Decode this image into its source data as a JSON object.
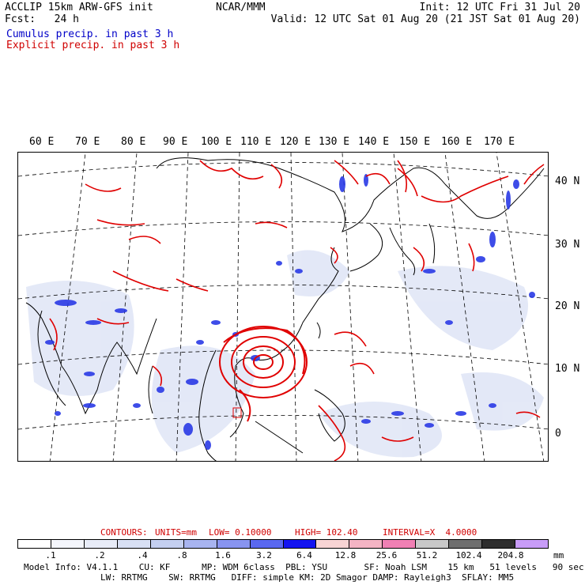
{
  "header": {
    "title": "ACCLIP 15km ARW-GFS init",
    "forecast": "Fcst:   24 h",
    "center": "NCAR/MMM",
    "init": "Init: 12 UTC Fri 31 Jul 20",
    "valid": "Valid: 12 UTC Sat 01 Aug 20 (21 JST Sat 01 Aug 20)",
    "legend_cumulus": "Cumulus precip. in past 3 h",
    "legend_explicit": "Explicit precip. in past 3 h"
  },
  "map": {
    "lon_labels": [
      "60 E",
      "70 E",
      "80 E",
      "90 E",
      "100 E",
      "110 E",
      "120 E",
      "130 E",
      "140 E",
      "150 E",
      "160 E",
      "170 E"
    ],
    "lat_labels": [
      "40 N",
      "30 N",
      "20 N",
      "10 N",
      "0"
    ],
    "colors": {
      "cumulus": "#2030e0",
      "explicit": "#e00000",
      "coast": "#000000",
      "grid": "#000000"
    }
  },
  "contours": {
    "label": "CONTOURS:",
    "units": "UNITS=mm",
    "low": "LOW= 0.10000",
    "high": "HIGH= 102.40",
    "interval": "INTERVAL=X  4.0000"
  },
  "colorbar": {
    "colors": [
      "#ffffff",
      "#f4f6fc",
      "#e8ecf8",
      "#d8e0f4",
      "#c4cff0",
      "#a8b4f0",
      "#8894f0",
      "#5a68f0",
      "#1414f0",
      "#f8d4d4",
      "#f4b4c4",
      "#f080b4",
      "#c8c8c8",
      "#6e6e6e",
      "#2e2e2e",
      "#c89cf8"
    ],
    "ticks": [
      ".1",
      ".2",
      ".4",
      ".8",
      "1.6",
      "3.2",
      "6.4",
      "12.8",
      "25.6",
      "51.2",
      "102.4",
      "204.8"
    ],
    "unit": "mm"
  },
  "footer": {
    "line1": "Model Info: V4.1.1    CU: KF      MP: WDM 6class  PBL: YSU       SF: Noah LSM    15 km   51 levels   90 sec",
    "line2": "LW: RRTMG    SW: RRTMG   DIFF: simple KM: 2D Smagor DAMP: Rayleigh3  SFLAY: MM5"
  }
}
